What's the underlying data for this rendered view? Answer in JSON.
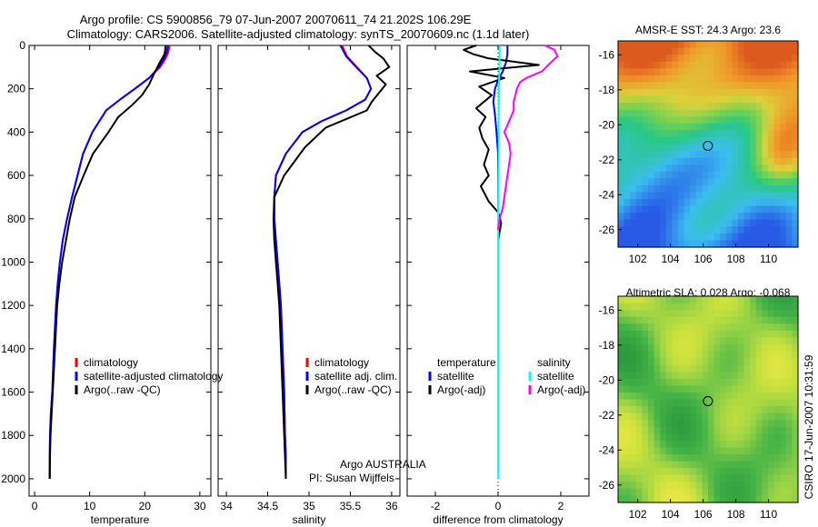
{
  "figure": {
    "title_line1": "Argo profile: CS 5900856_79 07-Jun-2007 20070611_74 21.202S 106.29E",
    "title_line2": "Climatology: CARS2006. Satellite-adjusted climatology: synTS_20070609.nc (1.1d later)",
    "side_label": "CSIRO 17-Jun-2007 10:31:59",
    "argo_label": "Argo AUSTRALIA",
    "pi_label": "PI: Susan Wijffels"
  },
  "colors": {
    "climatology": "#ff0000",
    "satellite": "#0000ff",
    "argo": "#000000",
    "salinity_satellite": "#00ffff",
    "salinity_argo": "#ff00ff"
  },
  "chart_data": [
    {
      "type": "line",
      "panel": "temperature",
      "xlabel": "temperature",
      "ylabel": "",
      "xlim": [
        -1,
        32
      ],
      "ylim": [
        2080,
        0
      ],
      "xticks": [
        0,
        10,
        20,
        30
      ],
      "yticks": [
        0,
        200,
        400,
        600,
        800,
        1000,
        1200,
        1400,
        1600,
        1800,
        2000
      ],
      "legend": [
        "climatology",
        "satellite-adjusted climatology",
        "Argo(..raw -QC)"
      ],
      "series": [
        {
          "name": "climatology",
          "color": "#ff0000",
          "x": [
            24.5,
            24.3,
            23.8,
            22.8,
            20.8,
            18.2,
            15.5,
            13.0,
            10.5,
            8.8,
            7.8,
            6.8,
            5.9,
            5.1,
            4.6,
            4.2,
            3.9,
            3.5,
            3.2,
            2.95,
            2.8,
            2.75,
            2.75
          ],
          "y": [
            0,
            30,
            60,
            100,
            150,
            200,
            250,
            300,
            400,
            500,
            600,
            700,
            800,
            900,
            1000,
            1100,
            1200,
            1400,
            1600,
            1700,
            1800,
            1900,
            2000
          ]
        },
        {
          "name": "satellite-adjusted climatology",
          "color": "#0000ff",
          "x": [
            24.2,
            24.0,
            23.5,
            22.6,
            20.8,
            18.2,
            15.5,
            13.0,
            10.5,
            8.8,
            7.8,
            6.8,
            5.9,
            5.1,
            4.6,
            4.2,
            3.9,
            3.5,
            3.2,
            2.95,
            2.8,
            2.75,
            2.75
          ],
          "y": [
            0,
            30,
            60,
            100,
            150,
            200,
            250,
            300,
            400,
            500,
            600,
            700,
            800,
            900,
            1000,
            1100,
            1200,
            1400,
            1600,
            1700,
            1800,
            1900,
            2000
          ]
        },
        {
          "name": "Argo(..raw -QC)",
          "color": "#000000",
          "x": [
            23.8,
            23.6,
            22.7,
            21.7,
            20.8,
            19.5,
            17.5,
            15.2,
            13.4,
            10.6,
            8.9,
            7.3,
            6.4,
            5.7,
            5.0,
            4.5,
            4.1,
            3.7,
            3.4,
            3.1,
            2.9,
            2.8,
            2.75
          ],
          "y": [
            0,
            40,
            80,
            130,
            180,
            230,
            280,
            330,
            400,
            500,
            600,
            700,
            800,
            900,
            1000,
            1100,
            1200,
            1400,
            1550,
            1700,
            1800,
            1900,
            2000
          ]
        }
      ]
    },
    {
      "type": "line",
      "panel": "salinity",
      "xlabel": "salinity",
      "ylabel": "",
      "xlim": [
        33.9,
        36.1
      ],
      "ylim": [
        2080,
        0
      ],
      "xticks": [
        34,
        34.5,
        35,
        35.5,
        36
      ],
      "legend": [
        "climatology",
        "satellite adj. clim.",
        "Argo(..raw -QC)"
      ],
      "series": [
        {
          "name": "climatology",
          "color": "#ff0000",
          "x": [
            35.4,
            35.46,
            35.58,
            35.7,
            35.75,
            35.68,
            35.45,
            35.15,
            34.92,
            34.72,
            34.6,
            34.58,
            34.58,
            34.6,
            34.62,
            34.64,
            34.66,
            34.68,
            34.7,
            34.71,
            34.72,
            34.72
          ],
          "y": [
            0,
            50,
            100,
            150,
            200,
            250,
            300,
            350,
            400,
            500,
            600,
            700,
            800,
            900,
            1000,
            1100,
            1200,
            1400,
            1600,
            1800,
            1900,
            2000
          ]
        },
        {
          "name": "satellite adj. clim.",
          "color": "#0000ff",
          "x": [
            35.38,
            35.45,
            35.57,
            35.7,
            35.75,
            35.68,
            35.45,
            35.15,
            34.92,
            34.72,
            34.6,
            34.58,
            34.58,
            34.6,
            34.62,
            34.64,
            34.66,
            34.68,
            34.7,
            34.71,
            34.72,
            34.72
          ],
          "y": [
            0,
            50,
            100,
            150,
            200,
            250,
            300,
            350,
            400,
            500,
            600,
            700,
            800,
            900,
            1000,
            1100,
            1200,
            1400,
            1600,
            1800,
            1900,
            2000
          ]
        },
        {
          "name": "Argo(..raw -QC)",
          "color": "#000000",
          "x": [
            35.72,
            35.8,
            35.9,
            35.97,
            35.82,
            35.93,
            35.76,
            35.7,
            35.2,
            34.95,
            34.7,
            34.58,
            34.57,
            34.58,
            34.6,
            34.62,
            34.64,
            34.66,
            34.68,
            34.7,
            34.71,
            34.72
          ],
          "y": [
            0,
            30,
            60,
            100,
            140,
            180,
            260,
            300,
            380,
            470,
            600,
            700,
            800,
            900,
            1000,
            1100,
            1200,
            1400,
            1600,
            1800,
            1900,
            2000
          ]
        }
      ]
    },
    {
      "type": "line",
      "panel": "difference",
      "xlabel": "difference from climatology",
      "ylabel": "",
      "xlim": [
        -2.9,
        2.9
      ],
      "ylim": [
        2080,
        0
      ],
      "xticks": [
        -2,
        0,
        2
      ],
      "legend": [
        "temperature",
        "satellite",
        "Argo(-adj)",
        "salinity",
        "satellite",
        "Argo(-adj)"
      ],
      "series": [
        {
          "name": "satellite",
          "group": "temperature",
          "color": "#0000ff",
          "x": [
            0.3,
            0.3,
            0.25,
            0.15,
            0.0,
            -0.1,
            -0.15,
            -0.1,
            -0.05,
            0.0,
            0.0,
            0.0,
            0.0,
            0.0,
            0.0,
            0.0
          ],
          "y": [
            0,
            40,
            80,
            120,
            160,
            200,
            260,
            320,
            400,
            500,
            600,
            800,
            1000,
            1400,
            1800,
            2000
          ]
        },
        {
          "name": "Argo(-adj)",
          "group": "temperature",
          "color": "#000000",
          "x": [
            -0.7,
            -1.1,
            -0.8,
            -0.3,
            1.3,
            -0.9,
            0.2,
            -0.6,
            -0.2,
            -0.7,
            -0.4,
            -0.6,
            -0.5,
            -0.3,
            -0.45,
            -0.3,
            -0.55,
            -0.3,
            0.0,
            0.1,
            0.0,
            0.0
          ],
          "y": [
            0,
            20,
            40,
            60,
            90,
            120,
            150,
            190,
            230,
            290,
            330,
            380,
            430,
            480,
            550,
            600,
            650,
            720,
            770,
            820,
            900,
            1000
          ]
        },
        {
          "name": "satellite",
          "group": "salinity",
          "color": "#00ffff",
          "x": [
            0.05,
            0.05,
            0.04,
            0.03,
            0.02,
            0.02,
            0.02,
            0.01,
            0.0,
            0.0,
            0.0,
            0.0,
            0.0
          ],
          "y": [
            0,
            60,
            120,
            200,
            300,
            400,
            500,
            600,
            800,
            1000,
            1400,
            1800,
            2000
          ]
        },
        {
          "name": "Argo(-adj)",
          "group": "salinity",
          "color": "#ff00ff",
          "x": [
            1.5,
            1.8,
            1.9,
            1.6,
            1.4,
            0.9,
            0.7,
            0.6,
            0.55,
            0.5,
            0.5,
            0.35,
            0.2,
            0.35,
            0.4,
            0.35,
            0.3,
            0.25,
            0.2,
            0.15,
            0.05,
            0.0
          ],
          "y": [
            0,
            20,
            50,
            90,
            120,
            150,
            170,
            200,
            230,
            260,
            300,
            350,
            400,
            450,
            500,
            550,
            600,
            650,
            700,
            750,
            800,
            850
          ]
        }
      ]
    },
    {
      "type": "heatmap",
      "panel": "map-sst",
      "title": "AMSR-E SST: 24.3 Argo: 23.6",
      "xlim": [
        100.8,
        111.8
      ],
      "ylim": [
        -27.0,
        -15.2
      ],
      "xticks": [
        102,
        104,
        106,
        108,
        110
      ],
      "yticks": [
        -16,
        -18,
        -20,
        -22,
        -24,
        -26
      ],
      "marker": {
        "lon": 106.29,
        "lat": -21.202
      }
    },
    {
      "type": "heatmap",
      "panel": "map-sla",
      "title": "Altimetric SLA: 0.028 Argo: -0.068",
      "xlim": [
        100.8,
        111.8
      ],
      "ylim": [
        -27.0,
        -15.2
      ],
      "xticks": [
        102,
        104,
        106,
        108,
        110
      ],
      "yticks": [
        -16,
        -18,
        -20,
        -22,
        -24,
        -26
      ],
      "marker": {
        "lon": 106.29,
        "lat": -21.202
      }
    }
  ]
}
